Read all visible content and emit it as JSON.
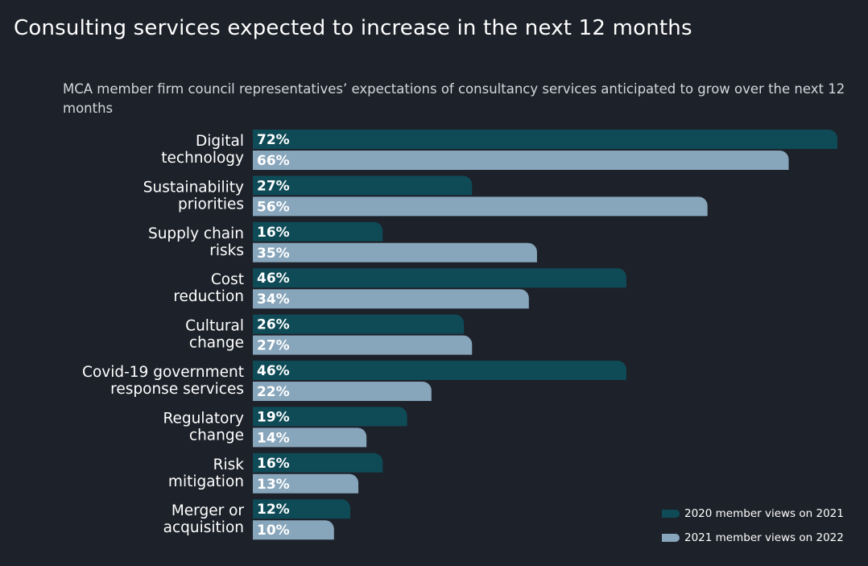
{
  "title": "Consulting services expected to increase in the next 12 months",
  "subtitle": "MCA member firm council representatives’ expectations of consultancy services anticipated to grow over the next 12 months",
  "colors": {
    "series_2020": "#0e4b57",
    "series_2021": "#87a5bb",
    "background": "#1d2129"
  },
  "chart_data": {
    "type": "bar",
    "orientation": "horizontal",
    "categories": [
      [
        "Digital",
        "technology"
      ],
      [
        "Sustainability",
        "priorities"
      ],
      [
        "Supply chain",
        "risks"
      ],
      [
        "Cost",
        "reduction"
      ],
      [
        "Cultural",
        "change"
      ],
      [
        "Covid-19 government",
        "response services"
      ],
      [
        "Regulatory",
        "change"
      ],
      [
        "Risk",
        "mitigation"
      ],
      [
        "Merger or",
        "acquisition"
      ]
    ],
    "series": [
      {
        "name": "2020 member views on 2021",
        "values": [
          72,
          27,
          16,
          46,
          26,
          46,
          19,
          16,
          12
        ],
        "labels": [
          "72%",
          "27%",
          "16%",
          "46%",
          "26%",
          "46%",
          "19%",
          "16%",
          "12%"
        ]
      },
      {
        "name": "2021 member views on 2022",
        "values": [
          66,
          56,
          35,
          34,
          27,
          22,
          14,
          13,
          10
        ],
        "labels": [
          "66%",
          "56%",
          "35%",
          "34%",
          "27%",
          "22%",
          "14%",
          "13%",
          "10%"
        ]
      }
    ],
    "value_unit": "%",
    "xlim": [
      0,
      72
    ],
    "legend": "bottom-right",
    "grid": false
  }
}
